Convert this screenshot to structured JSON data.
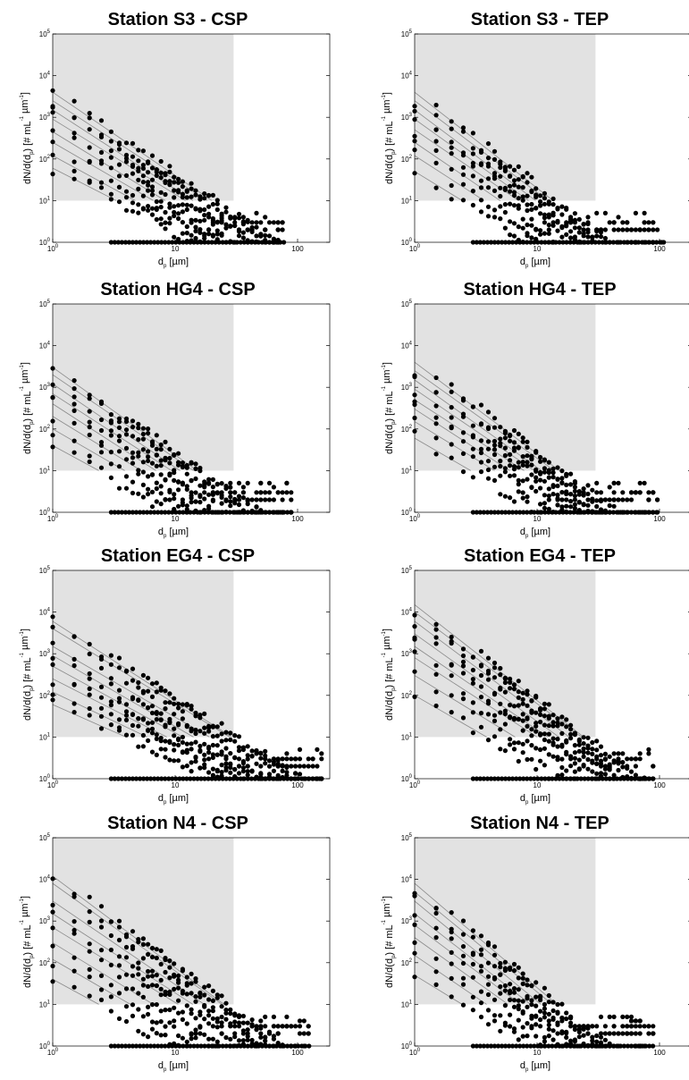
{
  "chart_data": [
    {
      "type": "scatter",
      "title": "Station S3 - CSP",
      "xlabel": "d_p [µm]",
      "ylabel": "dN/d(d_p) [# mL^-1 µm^-1]",
      "xscale": "log",
      "yscale": "log",
      "xlim": [
        1,
        200
      ],
      "ylim": [
        1,
        100000
      ],
      "xticks": [
        "10^0",
        "10",
        "100"
      ],
      "yticks": [
        "10^0",
        "10^1",
        "10^2",
        "10^3",
        "10^4",
        "10^5"
      ],
      "shaded_region": {
        "x": [
          1,
          30
        ],
        "y": [
          10,
          100000
        ]
      },
      "fit_lines": [
        [
          4000,
          2.0
        ],
        [
          2500,
          1.9
        ],
        [
          1500,
          1.9
        ],
        [
          900,
          1.8
        ],
        [
          450,
          1.8
        ],
        [
          250,
          1.7
        ],
        [
          120,
          1.6
        ],
        [
          60,
          1.5
        ]
      ],
      "point_cloud": {
        "y_start": [
          60,
          4000
        ],
        "x_max": 80,
        "y_floor": 1
      }
    },
    {
      "type": "scatter",
      "title": "Station S3 - TEP",
      "xlabel": "d_p [µm]",
      "ylabel": "dN/d(d_p) [# mL^-1 µm^-1]",
      "xscale": "log",
      "yscale": "log",
      "xlim": [
        1,
        120
      ],
      "ylim": [
        1,
        100000
      ],
      "xticks": [
        "10^0",
        "10",
        "100"
      ],
      "yticks": [
        "10^0",
        "10^1",
        "10^2",
        "10^3",
        "10^4",
        "10^5"
      ],
      "shaded_region": {
        "x": [
          1,
          30
        ],
        "y": [
          10,
          100000
        ]
      },
      "fit_lines": [
        [
          4000,
          2.3
        ],
        [
          2500,
          2.2
        ],
        [
          1500,
          2.2
        ],
        [
          900,
          2.1
        ],
        [
          500,
          2.0
        ],
        [
          250,
          2.0
        ],
        [
          120,
          1.9
        ],
        [
          50,
          1.8
        ]
      ],
      "point_cloud": {
        "y_start": [
          40,
          4000
        ],
        "x_max": 110,
        "y_floor": 1
      }
    },
    {
      "type": "scatter",
      "title": "Station HG4 - CSP",
      "xlabel": "d_p [µm]",
      "ylabel": "dN/d(d_p) [# mL^-1 µm^-1]",
      "xscale": "log",
      "yscale": "log",
      "xlim": [
        1,
        150
      ],
      "ylim": [
        1,
        100000
      ],
      "xticks": [
        "10^0",
        "10",
        "100"
      ],
      "yticks": [
        "10^0",
        "10^1",
        "10^2",
        "10^3",
        "10^4",
        "10^5"
      ],
      "shaded_region": {
        "x": [
          1,
          30
        ],
        "y": [
          10,
          100000
        ]
      },
      "fit_lines": [
        [
          3000,
          2.1
        ],
        [
          2000,
          2.0
        ],
        [
          1200,
          2.0
        ],
        [
          700,
          1.9
        ],
        [
          400,
          1.9
        ],
        [
          200,
          1.8
        ],
        [
          100,
          1.7
        ],
        [
          40,
          1.6
        ]
      ],
      "point_cloud": {
        "y_start": [
          30,
          3000
        ],
        "x_max": 90,
        "y_floor": 1
      }
    },
    {
      "type": "scatter",
      "title": "Station HG4 - TEP",
      "xlabel": "d_p [µm]",
      "ylabel": "dN/d(d_p) [# mL^-1 µm^-1]",
      "xscale": "log",
      "yscale": "log",
      "xlim": [
        1,
        120
      ],
      "ylim": [
        1,
        100000
      ],
      "xticks": [
        "10^0",
        "10",
        "100"
      ],
      "yticks": [
        "10^0",
        "10^1",
        "10^2",
        "10^3",
        "10^4",
        "10^5"
      ],
      "shaded_region": {
        "x": [
          1,
          30
        ],
        "y": [
          10,
          100000
        ]
      },
      "fit_lines": [
        [
          4000,
          2.2
        ],
        [
          2500,
          2.1
        ],
        [
          1500,
          2.1
        ],
        [
          900,
          2.0
        ],
        [
          500,
          1.9
        ],
        [
          300,
          1.9
        ],
        [
          150,
          1.8
        ],
        [
          60,
          1.7
        ]
      ],
      "point_cloud": {
        "y_start": [
          40,
          4000
        ],
        "x_max": 100,
        "y_floor": 1
      }
    },
    {
      "type": "scatter",
      "title": "Station EG4 - CSP",
      "xlabel": "d_p [µm]",
      "ylabel": "dN/d(d_p) [# mL^-1 µm^-1]",
      "xscale": "log",
      "yscale": "log",
      "xlim": [
        1,
        200
      ],
      "ylim": [
        1,
        100000
      ],
      "xticks": [
        "10^0",
        "10",
        "100"
      ],
      "yticks": [
        "10^0",
        "10^1",
        "10^2",
        "10^3",
        "10^4",
        "10^5"
      ],
      "shaded_region": {
        "x": [
          1,
          30
        ],
        "y": [
          10,
          100000
        ]
      },
      "fit_lines": [
        [
          6000,
          1.9
        ],
        [
          4000,
          1.8
        ],
        [
          1500,
          1.7
        ],
        [
          900,
          1.7
        ],
        [
          500,
          1.6
        ],
        [
          250,
          1.5
        ],
        [
          120,
          1.4
        ],
        [
          60,
          1.3
        ]
      ],
      "point_cloud": {
        "y_start": [
          50,
          12000
        ],
        "x_max": 160,
        "y_floor": 1
      }
    },
    {
      "type": "scatter",
      "title": "Station EG4 - TEP",
      "xlabel": "d_p [µm]",
      "ylabel": "dN/d(d_p) [# mL^-1 µm^-1]",
      "xscale": "log",
      "yscale": "log",
      "xlim": [
        1,
        120
      ],
      "ylim": [
        1,
        100000
      ],
      "xticks": [
        "10^0",
        "10",
        "100"
      ],
      "yticks": [
        "10^0",
        "10^1",
        "10^2",
        "10^3",
        "10^4",
        "10^5"
      ],
      "shaded_region": {
        "x": [
          1,
          30
        ],
        "y": [
          10,
          100000
        ]
      },
      "fit_lines": [
        [
          15000,
          2.3
        ],
        [
          10000,
          2.2
        ],
        [
          6000,
          2.2
        ],
        [
          3000,
          2.1
        ],
        [
          1500,
          2.0
        ],
        [
          800,
          1.9
        ],
        [
          300,
          1.8
        ],
        [
          100,
          1.7
        ]
      ],
      "point_cloud": {
        "y_start": [
          80,
          15000
        ],
        "x_max": 90,
        "y_floor": 1
      }
    },
    {
      "type": "scatter",
      "title": "Station N4 - CSP",
      "xlabel": "d_p [µm]",
      "ylabel": "dN/d(d_p) [# mL^-1 µm^-1]",
      "xscale": "log",
      "yscale": "log",
      "xlim": [
        1,
        200
      ],
      "ylim": [
        1,
        100000
      ],
      "xticks": [
        "10^0",
        "10",
        "100"
      ],
      "yticks": [
        "10^0",
        "10^1",
        "10^2",
        "10^3",
        "10^4",
        "10^5"
      ],
      "shaded_region": {
        "x": [
          1,
          30
        ],
        "y": [
          10,
          100000
        ]
      },
      "fit_lines": [
        [
          12000,
          2.2
        ],
        [
          8000,
          2.1
        ],
        [
          3000,
          2.0
        ],
        [
          1500,
          1.9
        ],
        [
          700,
          1.8
        ],
        [
          300,
          1.8
        ],
        [
          120,
          1.7
        ],
        [
          40,
          1.6
        ]
      ],
      "point_cloud": {
        "y_start": [
          25,
          12000
        ],
        "x_max": 130,
        "y_floor": 1
      }
    },
    {
      "type": "scatter",
      "title": "Station N4 - TEP",
      "xlabel": "d_p [µm]",
      "ylabel": "dN/d(d_p) [# mL^-1 µm^-1]",
      "xscale": "log",
      "yscale": "log",
      "xlim": [
        1,
        120
      ],
      "ylim": [
        1,
        100000
      ],
      "xticks": [
        "10^0",
        "10",
        "100"
      ],
      "yticks": [
        "10^0",
        "10^1",
        "10^2",
        "10^3",
        "10^4",
        "10^5"
      ],
      "shaded_region": {
        "x": [
          1,
          30
        ],
        "y": [
          10,
          100000
        ]
      },
      "fit_lines": [
        [
          8000,
          2.5
        ],
        [
          5000,
          2.4
        ],
        [
          3000,
          2.4
        ],
        [
          1500,
          2.3
        ],
        [
          800,
          2.2
        ],
        [
          400,
          2.1
        ],
        [
          150,
          2.0
        ],
        [
          50,
          1.8
        ]
      ],
      "point_cloud": {
        "y_start": [
          40,
          8000
        ],
        "x_max": 90,
        "y_floor": 1
      }
    }
  ],
  "colors": {
    "background": "#ffffff",
    "shaded_region": "#e2e2e2",
    "fit_line": "#8a8a8a",
    "points": "#000000",
    "axes": "#000000"
  }
}
